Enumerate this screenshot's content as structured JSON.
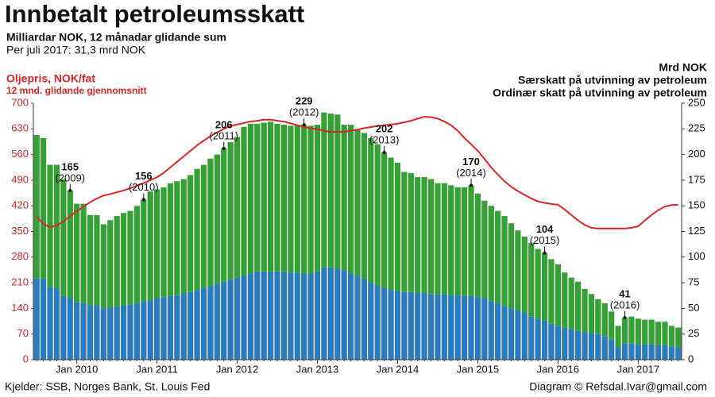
{
  "chart_data": {
    "type": "bar-line",
    "title": "Innbetalt petroleumsskatt",
    "subtitle": "Milliardar NOK, 12 månadar glidande sum",
    "note": "Per juli 2017: 31,3 mrd NOK",
    "y_label": "Oljepris, NOK/fat",
    "y_label_sub": "12 mnd. glidande gjennomsnitt",
    "y2_label": "Mrd NOK",
    "source": "Kjelder: SSB, Norges Bank, St. Louis Fed",
    "credit": "Diagram © Refsdal.Ivar@gmail.com",
    "categories": [
      null,
      null,
      null,
      null,
      null,
      null,
      "Jan 2010",
      null,
      null,
      null,
      null,
      null,
      null,
      null,
      null,
      null,
      null,
      null,
      "Jan 2011",
      null,
      null,
      null,
      null,
      null,
      null,
      null,
      null,
      null,
      null,
      null,
      "Jan 2012",
      null,
      null,
      null,
      null,
      null,
      null,
      null,
      null,
      null,
      null,
      null,
      "Jan 2013",
      null,
      null,
      null,
      null,
      null,
      null,
      null,
      null,
      null,
      null,
      null,
      "Jan 2014",
      null,
      null,
      null,
      null,
      null,
      null,
      null,
      null,
      null,
      null,
      null,
      "Jan 2015",
      null,
      null,
      null,
      null,
      null,
      null,
      null,
      null,
      null,
      null,
      null,
      "Jan 2016",
      null,
      null,
      null,
      null,
      null,
      null,
      null,
      null,
      null,
      null,
      null,
      "Jan 2017",
      null,
      null,
      null,
      null,
      null,
      null
    ],
    "series": [
      {
        "name": "Ordinær skatt på utvinning av petroleum",
        "color": "#2c7bbf",
        "axis": "y2",
        "kind": "bar",
        "values": [
          79,
          79,
          71,
          70,
          62,
          60,
          56,
          55,
          53,
          53,
          50,
          51,
          52,
          53,
          54,
          55,
          57,
          58,
          60,
          61,
          62,
          63,
          65,
          66,
          68,
          70,
          72,
          74,
          76,
          78,
          80,
          82,
          84,
          86,
          86,
          86,
          86,
          86,
          85,
          85,
          84,
          84,
          86,
          90,
          90,
          89,
          87,
          84,
          82,
          79,
          75,
          72,
          70,
          68,
          67,
          66,
          66,
          65,
          65,
          64,
          64,
          64,
          63,
          63,
          62,
          62,
          61,
          60,
          57,
          55,
          52,
          50,
          48,
          46,
          42,
          40,
          38,
          35,
          33,
          31,
          30,
          28,
          27,
          26,
          25,
          23,
          20,
          12,
          16,
          16,
          15,
          15,
          15,
          14,
          14,
          13,
          12
        ]
      },
      {
        "name": "Særskatt på utvinning av petroleum",
        "color": "#36a036",
        "axis": "y2",
        "kind": "bar",
        "values": [
          140,
          137,
          119,
          120,
          114,
          105,
          96,
          97,
          88,
          88,
          82,
          85,
          88,
          90,
          91,
          95,
          99,
          106,
          106,
          107,
          110,
          111,
          111,
          114,
          118,
          120,
          124,
          126,
          130,
          134,
          137,
          145,
          146,
          144,
          145,
          146,
          144,
          143,
          143,
          144,
          145,
          144,
          143,
          151,
          150,
          150,
          142,
          145,
          142,
          142,
          141,
          138,
          132,
          129,
          125,
          117,
          116,
          113,
          113,
          112,
          108,
          108,
          107,
          105,
          106,
          108,
          101,
          95,
          93,
          90,
          88,
          83,
          78,
          74,
          72,
          68,
          66,
          63,
          60,
          54,
          50,
          48,
          42,
          38,
          34,
          32,
          27,
          21,
          25,
          26,
          25,
          24,
          24,
          23,
          23,
          20,
          19.3
        ]
      },
      {
        "name": "Oljepris, NOK/fat",
        "color": "#d62728",
        "axis": "y",
        "kind": "line",
        "values": [
          390,
          370,
          362,
          366,
          378,
          392,
          405,
          418,
          430,
          440,
          448,
          452,
          457,
          462,
          468,
          475,
          482,
          490,
          498,
          510,
          525,
          540,
          555,
          570,
          585,
          598,
          610,
          620,
          630,
          638,
          642,
          646,
          650,
          652,
          655,
          655,
          652,
          650,
          645,
          640,
          635,
          632,
          629,
          625,
          622,
          622,
          622,
          625,
          628,
          632,
          635,
          638,
          640,
          642,
          644,
          648,
          652,
          658,
          663,
          662,
          658,
          650,
          640,
          625,
          605,
          588,
          570,
          548,
          525,
          505,
          487,
          472,
          460,
          450,
          440,
          432,
          428,
          425,
          423,
          410,
          395,
          380,
          368,
          360,
          358,
          358,
          358,
          358,
          358,
          360,
          364,
          380,
          395,
          408,
          418,
          422,
          423
        ]
      }
    ],
    "annotations": [
      {
        "value": 165,
        "label": "(2009)"
      },
      {
        "value": 156,
        "label": "(2010)"
      },
      {
        "value": 206,
        "label": "(2011)"
      },
      {
        "value": 229,
        "label": "(2012)"
      },
      {
        "value": 202,
        "label": "(2013)"
      },
      {
        "value": 170,
        "label": "(2014)"
      },
      {
        "value": 104,
        "label": "(2015)"
      },
      {
        "value": 41,
        "label": "(2016)"
      }
    ],
    "ylim": [
      0,
      700
    ],
    "yticks": [
      0,
      70,
      140,
      210,
      280,
      350,
      420,
      490,
      560,
      630,
      700
    ],
    "y2lim": [
      0,
      250
    ],
    "y2ticks": [
      0,
      25,
      50,
      75,
      100,
      125,
      150,
      175,
      200,
      225,
      250
    ]
  }
}
